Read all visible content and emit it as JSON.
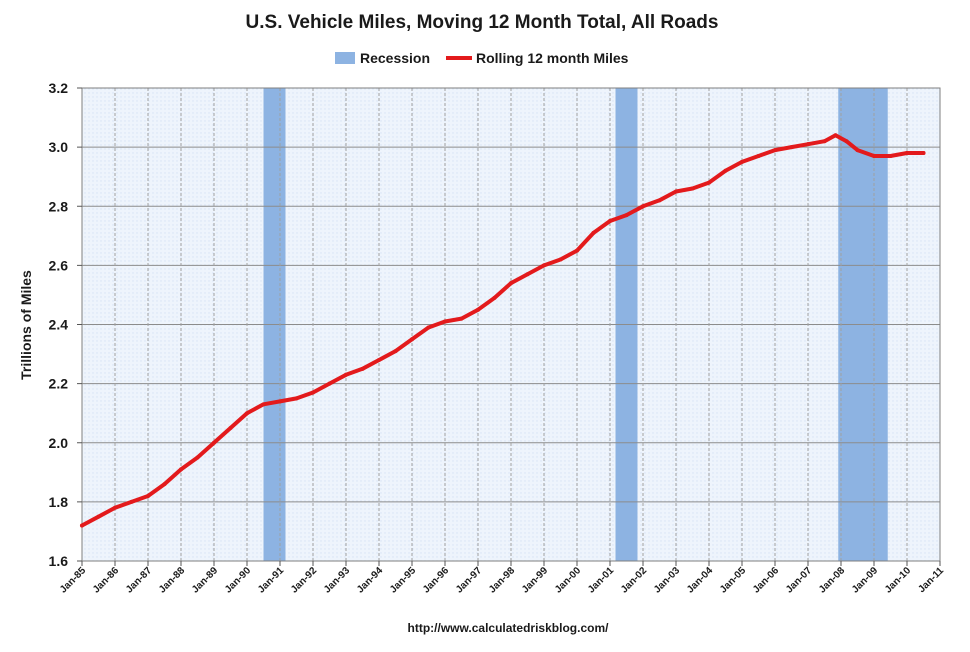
{
  "chart_data": {
    "type": "line",
    "title": "U.S. Vehicle Miles, Moving 12 Month Total, All Roads",
    "ylabel": "Trillions of Miles",
    "xlabel": "",
    "source": "http://www.calculatedriskblog.com/",
    "ylim": [
      1.6,
      3.2
    ],
    "yticks": [
      "1.6",
      "1.8",
      "2.0",
      "2.2",
      "2.4",
      "2.6",
      "2.8",
      "3.0",
      "3.2"
    ],
    "xlim": [
      "1985-01",
      "2011-01"
    ],
    "xticks": [
      "Jan-85",
      "Jan-86",
      "Jan-87",
      "Jan-88",
      "Jan-89",
      "Jan-90",
      "Jan-91",
      "Jan-92",
      "Jan-93",
      "Jan-94",
      "Jan-95",
      "Jan-96",
      "Jan-97",
      "Jan-98",
      "Jan-99",
      "Jan-00",
      "Jan-01",
      "Jan-02",
      "Jan-03",
      "Jan-04",
      "Jan-05",
      "Jan-06",
      "Jan-07",
      "Jan-08",
      "Jan-09",
      "Jan-10",
      "Jan-11"
    ],
    "grid": true,
    "legend": {
      "placement": "top-center",
      "entries": [
        {
          "label": "Recession",
          "type": "band",
          "color": "#8db3e2"
        },
        {
          "label": "Rolling 12 month Miles",
          "type": "line",
          "color": "#e31a1c"
        }
      ]
    },
    "recessions": [
      {
        "start": "1990-07",
        "end": "1991-03"
      },
      {
        "start": "2001-03",
        "end": "2001-11"
      },
      {
        "start": "2007-12",
        "end": "2009-06"
      }
    ],
    "series": [
      {
        "name": "Rolling 12 month Miles",
        "color": "#e31a1c",
        "x": [
          "1985-01",
          "1985-07",
          "1986-01",
          "1986-07",
          "1987-01",
          "1987-07",
          "1988-01",
          "1988-07",
          "1989-01",
          "1989-07",
          "1990-01",
          "1990-07",
          "1991-01",
          "1991-07",
          "1992-01",
          "1992-07",
          "1993-01",
          "1993-07",
          "1994-01",
          "1994-07",
          "1995-01",
          "1995-07",
          "1996-01",
          "1996-07",
          "1997-01",
          "1997-07",
          "1998-01",
          "1998-07",
          "1999-01",
          "1999-07",
          "2000-01",
          "2000-07",
          "2001-01",
          "2001-07",
          "2002-01",
          "2002-07",
          "2003-01",
          "2003-07",
          "2004-01",
          "2004-07",
          "2005-01",
          "2005-07",
          "2006-01",
          "2006-07",
          "2007-01",
          "2007-07",
          "2007-11",
          "2008-03",
          "2008-07",
          "2009-01",
          "2009-07",
          "2010-01",
          "2010-07"
        ],
        "values": [
          1.72,
          1.75,
          1.78,
          1.8,
          1.82,
          1.86,
          1.91,
          1.95,
          2.0,
          2.05,
          2.1,
          2.13,
          2.14,
          2.15,
          2.17,
          2.2,
          2.23,
          2.25,
          2.28,
          2.31,
          2.35,
          2.39,
          2.41,
          2.42,
          2.45,
          2.49,
          2.54,
          2.57,
          2.6,
          2.62,
          2.65,
          2.71,
          2.75,
          2.77,
          2.8,
          2.82,
          2.85,
          2.86,
          2.88,
          2.92,
          2.95,
          2.97,
          2.99,
          3.0,
          3.01,
          3.02,
          3.04,
          3.02,
          2.99,
          2.97,
          2.97,
          2.98,
          2.98
        ]
      }
    ]
  }
}
